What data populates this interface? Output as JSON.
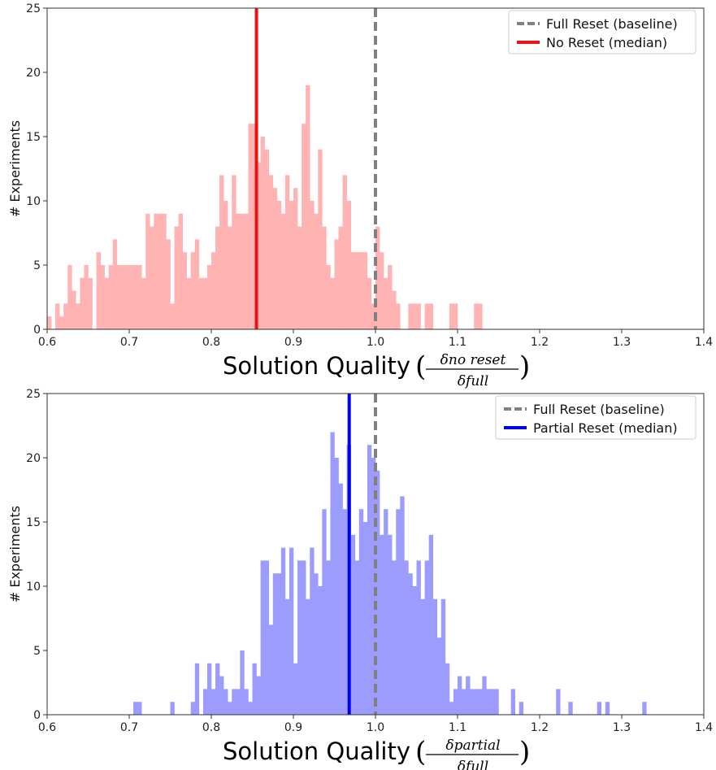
{
  "chart_data": [
    {
      "type": "bar",
      "bin_width": 0.005,
      "x": [
        0.6,
        0.605,
        0.61,
        0.615,
        0.62,
        0.625,
        0.63,
        0.635,
        0.64,
        0.645,
        0.65,
        0.655,
        0.66,
        0.665,
        0.67,
        0.675,
        0.68,
        0.685,
        0.69,
        0.695,
        0.7,
        0.705,
        0.71,
        0.715,
        0.72,
        0.725,
        0.73,
        0.735,
        0.74,
        0.745,
        0.75,
        0.755,
        0.76,
        0.765,
        0.77,
        0.775,
        0.78,
        0.785,
        0.79,
        0.795,
        0.8,
        0.805,
        0.81,
        0.815,
        0.82,
        0.825,
        0.83,
        0.835,
        0.84,
        0.845,
        0.85,
        0.855,
        0.86,
        0.865,
        0.87,
        0.875,
        0.88,
        0.885,
        0.89,
        0.895,
        0.9,
        0.905,
        0.91,
        0.915,
        0.92,
        0.925,
        0.93,
        0.935,
        0.94,
        0.945,
        0.95,
        0.955,
        0.96,
        0.965,
        0.97,
        0.975,
        0.98,
        0.985,
        0.99,
        0.995,
        1.0,
        1.005,
        1.01,
        1.015,
        1.02,
        1.025,
        1.03,
        1.035,
        1.04,
        1.045,
        1.05,
        1.055,
        1.06,
        1.065,
        1.07,
        1.075,
        1.08,
        1.085,
        1.09,
        1.095,
        1.1,
        1.105,
        1.11,
        1.115,
        1.12,
        1.125,
        1.13,
        1.135,
        1.14,
        1.145,
        1.15,
        1.155,
        1.16,
        1.165,
        1.17,
        1.175,
        1.18,
        1.185,
        1.19,
        1.195
      ],
      "values": [
        1,
        0,
        2,
        1,
        2,
        5,
        3,
        2,
        4,
        5,
        4,
        0,
        6,
        5,
        4,
        5,
        7,
        5,
        5,
        5,
        5,
        5,
        5,
        4,
        9,
        8,
        9,
        9,
        9,
        7,
        2,
        8,
        9,
        6,
        4,
        6,
        7,
        4,
        4,
        5,
        6,
        8,
        12,
        10,
        8,
        12,
        9,
        9,
        9,
        16,
        16,
        13,
        15,
        14,
        12,
        11,
        10,
        9,
        12,
        10,
        11,
        8,
        16,
        19,
        10,
        9,
        14,
        8,
        5,
        4,
        7,
        8,
        12,
        10,
        6,
        6,
        6,
        6,
        4,
        2,
        8,
        6,
        4,
        5,
        3,
        2,
        0,
        0,
        2,
        2,
        2,
        0,
        2,
        2,
        0,
        0,
        0,
        0,
        2,
        2,
        0,
        0,
        0,
        0,
        2,
        2,
        0,
        0,
        0,
        0,
        0,
        0,
        0,
        0,
        0,
        0,
        0,
        0,
        0,
        0
      ],
      "xlabel": "Solution Quality",
      "xlabel_fraction": {
        "numerator": "δno reset",
        "denominator": "δfull"
      },
      "ylabel": "# Experiments",
      "xlim": [
        0.6,
        1.4
      ],
      "ylim": [
        0,
        25
      ],
      "xticks": [
        "0.6",
        "0.7",
        "0.8",
        "0.9",
        "1.0",
        "1.1",
        "1.2",
        "1.3",
        "1.4"
      ],
      "yticks": [
        "0",
        "5",
        "10",
        "15",
        "20",
        "25"
      ],
      "bar_color": "#ffb3b3",
      "baseline": {
        "value": 1.0,
        "label": "Full Reset (baseline)",
        "color": "#808080"
      },
      "median": {
        "value": 0.855,
        "label": "No Reset (median)",
        "color": "#ee1111"
      },
      "legend_position": "top-right"
    },
    {
      "type": "bar",
      "bin_width": 0.005,
      "x": [
        0.705,
        0.71,
        0.75,
        0.775,
        0.78,
        0.785,
        0.79,
        0.795,
        0.8,
        0.805,
        0.81,
        0.815,
        0.82,
        0.825,
        0.83,
        0.835,
        0.84,
        0.845,
        0.85,
        0.855,
        0.86,
        0.865,
        0.87,
        0.875,
        0.88,
        0.885,
        0.89,
        0.895,
        0.9,
        0.905,
        0.91,
        0.915,
        0.92,
        0.925,
        0.93,
        0.935,
        0.94,
        0.945,
        0.95,
        0.955,
        0.96,
        0.965,
        0.97,
        0.975,
        0.98,
        0.985,
        0.99,
        0.995,
        1.0,
        1.005,
        1.01,
        1.015,
        1.02,
        1.025,
        1.03,
        1.035,
        1.04,
        1.045,
        1.05,
        1.055,
        1.06,
        1.065,
        1.07,
        1.075,
        1.08,
        1.085,
        1.09,
        1.095,
        1.1,
        1.105,
        1.11,
        1.115,
        1.12,
        1.125,
        1.13,
        1.135,
        1.14,
        1.145,
        1.165,
        1.175,
        1.22,
        1.235,
        1.27,
        1.28,
        1.325
      ],
      "values": [
        1,
        1,
        1,
        1,
        4,
        0,
        2,
        4,
        2,
        4,
        3,
        2,
        1,
        2,
        2,
        5,
        2,
        1,
        4,
        3,
        12,
        12,
        7,
        11,
        11,
        13,
        9,
        13,
        4,
        12,
        12,
        9,
        13,
        11,
        10,
        16,
        12,
        22,
        20,
        18,
        16,
        21,
        14,
        12,
        16,
        15,
        21,
        20,
        19,
        14,
        16,
        14,
        12,
        16,
        17,
        12,
        11,
        10,
        12,
        9,
        12,
        14,
        9,
        6,
        9,
        4,
        1,
        2,
        3,
        2,
        3,
        2,
        2,
        2,
        3,
        2,
        2,
        2,
        2,
        1,
        2,
        1,
        1,
        1,
        1
      ],
      "xlabel": "Solution Quality",
      "xlabel_fraction": {
        "numerator": "δpartial",
        "denominator": "δfull"
      },
      "ylabel": "# Experiments",
      "xlim": [
        0.6,
        1.4
      ],
      "ylim": [
        0,
        25
      ],
      "xticks": [
        "0.6",
        "0.7",
        "0.8",
        "0.9",
        "1.0",
        "1.1",
        "1.2",
        "1.3",
        "1.4"
      ],
      "yticks": [
        "0",
        "5",
        "10",
        "15",
        "20",
        "25"
      ],
      "bar_color": "#9c9cff",
      "baseline": {
        "value": 1.0,
        "label": "Full Reset (baseline)",
        "color": "#808080"
      },
      "median": {
        "value": 0.968,
        "label": "Partial Reset (median)",
        "color": "#0000ee"
      },
      "legend_position": "top-right"
    }
  ]
}
